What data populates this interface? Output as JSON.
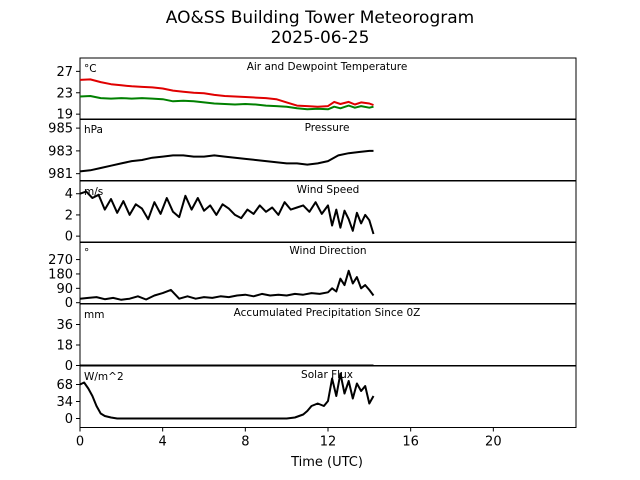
{
  "title": "AO&SS Building Tower Meteorogram",
  "subtitle": "2025-06-25",
  "xlabel": "Time (UTC)",
  "colors": {
    "temperature": "#e00000",
    "dewpoint": "#008000",
    "black": "#000000"
  },
  "chart_data": {
    "type": "line",
    "shared_x": {
      "label": "Time (UTC)",
      "xlim": [
        0,
        24
      ],
      "ticks": [
        0,
        4,
        8,
        12,
        16,
        20
      ]
    },
    "panels": [
      {
        "name": "Air and Dewpoint Temperature",
        "unit": "°C",
        "ylim": [
          18,
          29.5
        ],
        "yticks": [
          19,
          23,
          27
        ],
        "series": [
          {
            "key": "temperature",
            "x": [
              0,
              0.5,
              1,
              1.5,
              2,
              2.5,
              3,
              3.5,
              4,
              4.5,
              5,
              5.5,
              6,
              6.5,
              7,
              7.5,
              8,
              8.5,
              9,
              9.5,
              10,
              10.5,
              11,
              11.5,
              12,
              12.3,
              12.6,
              13,
              13.3,
              13.6,
              14,
              14.2
            ],
            "values": [
              25.4,
              25.5,
              25.0,
              24.6,
              24.4,
              24.2,
              24.1,
              24.0,
              23.8,
              23.4,
              23.2,
              23.0,
              22.9,
              22.6,
              22.4,
              22.3,
              22.2,
              22.1,
              22.0,
              21.8,
              21.2,
              20.6,
              20.5,
              20.4,
              20.5,
              21.3,
              20.9,
              21.3,
              20.8,
              21.2,
              21.0,
              20.7
            ]
          },
          {
            "key": "dewpoint",
            "x": [
              0,
              0.5,
              1,
              1.5,
              2,
              2.5,
              3,
              3.5,
              4,
              4.5,
              5,
              5.5,
              6,
              6.5,
              7,
              7.5,
              8,
              8.5,
              9,
              9.5,
              10,
              10.5,
              11,
              11.5,
              12,
              12.3,
              12.6,
              13,
              13.3,
              13.6,
              14,
              14.2
            ],
            "values": [
              22.3,
              22.4,
              22.0,
              21.9,
              22.0,
              21.9,
              22.0,
              21.9,
              21.8,
              21.4,
              21.5,
              21.4,
              21.2,
              21.0,
              20.9,
              20.8,
              20.9,
              20.8,
              20.6,
              20.5,
              20.4,
              20.1,
              19.9,
              20.0,
              19.9,
              20.4,
              20.1,
              20.6,
              20.2,
              20.5,
              20.2,
              20.4
            ]
          }
        ]
      },
      {
        "name": "Pressure",
        "unit": "hPa",
        "ylim": [
          980.4,
          985.8
        ],
        "yticks": [
          981,
          983,
          985
        ],
        "series": [
          {
            "key": "pressure",
            "x": [
              0,
              0.5,
              1,
              1.5,
              2,
              2.5,
              3,
              3.5,
              4,
              4.5,
              5,
              5.5,
              6,
              6.5,
              7,
              7.5,
              8,
              8.5,
              9,
              9.5,
              10,
              10.5,
              11,
              11.5,
              12,
              12.5,
              13,
              13.5,
              14,
              14.2
            ],
            "values": [
              981.2,
              981.3,
              981.5,
              981.7,
              981.9,
              982.1,
              982.2,
              982.4,
              982.5,
              982.6,
              982.6,
              982.5,
              982.5,
              982.6,
              982.5,
              982.4,
              982.3,
              982.2,
              982.1,
              982.0,
              981.9,
              981.9,
              981.8,
              981.9,
              982.1,
              982.6,
              982.8,
              982.9,
              983.0,
              983.0
            ]
          }
        ]
      },
      {
        "name": "Wind Speed",
        "unit": "m/s",
        "ylim": [
          -0.6,
          5.2
        ],
        "yticks": [
          0,
          2,
          4
        ],
        "series": [
          {
            "key": "wind_speed",
            "x": [
              0,
              0.3,
              0.6,
              0.9,
              1.2,
              1.5,
              1.8,
              2.1,
              2.4,
              2.7,
              3.0,
              3.3,
              3.6,
              3.9,
              4.2,
              4.5,
              4.8,
              5.1,
              5.4,
              5.7,
              6.0,
              6.3,
              6.6,
              6.9,
              7.2,
              7.5,
              7.8,
              8.1,
              8.4,
              8.7,
              9.0,
              9.3,
              9.6,
              9.9,
              10.2,
              10.5,
              10.8,
              11.1,
              11.4,
              11.7,
              12.0,
              12.2,
              12.4,
              12.6,
              12.8,
              13.0,
              13.2,
              13.4,
              13.6,
              13.8,
              14.0,
              14.2
            ],
            "values": [
              4.0,
              4.2,
              3.6,
              3.9,
              2.5,
              3.5,
              2.2,
              3.3,
              2.0,
              3.0,
              2.6,
              1.6,
              3.2,
              2.1,
              3.6,
              2.3,
              1.8,
              3.8,
              2.5,
              3.6,
              2.4,
              2.9,
              2.0,
              3.0,
              2.6,
              2.0,
              1.7,
              2.5,
              2.1,
              2.9,
              2.3,
              2.7,
              2.0,
              3.2,
              2.5,
              2.7,
              2.9,
              2.3,
              3.2,
              2.1,
              2.9,
              1.0,
              2.5,
              0.8,
              2.4,
              1.6,
              0.5,
              2.2,
              1.2,
              2.0,
              1.5,
              0.2
            ]
          }
        ]
      },
      {
        "name": "Wind Direction",
        "unit": "°",
        "ylim": [
          -5,
          380
        ],
        "yticks": [
          0,
          90,
          180,
          270
        ],
        "series": [
          {
            "key": "wind_direction",
            "x": [
              0,
              0.4,
              0.8,
              1.2,
              1.6,
              2.0,
              2.4,
              2.8,
              3.2,
              3.6,
              4.0,
              4.4,
              4.8,
              5.2,
              5.6,
              6.0,
              6.4,
              6.8,
              7.2,
              7.6,
              8.0,
              8.4,
              8.8,
              9.2,
              9.6,
              10.0,
              10.4,
              10.8,
              11.2,
              11.6,
              12.0,
              12.2,
              12.4,
              12.6,
              12.8,
              13.0,
              13.2,
              13.4,
              13.6,
              13.8,
              14.0,
              14.2
            ],
            "values": [
              25,
              30,
              35,
              22,
              30,
              18,
              25,
              40,
              20,
              45,
              60,
              80,
              25,
              40,
              25,
              35,
              30,
              40,
              35,
              45,
              50,
              40,
              55,
              45,
              50,
              45,
              55,
              50,
              60,
              55,
              65,
              90,
              70,
              150,
              110,
              200,
              120,
              160,
              90,
              110,
              80,
              45
            ]
          }
        ]
      },
      {
        "name": "Accumulated Precipitation Since 0Z",
        "unit": "mm",
        "ylim": [
          0,
          54
        ],
        "yticks": [
          0,
          18,
          36
        ],
        "series": [
          {
            "key": "precipitation",
            "x": [
              0,
              14.2
            ],
            "values": [
              0,
              0
            ]
          }
        ]
      },
      {
        "name": "Solar Flux",
        "unit": "W/m^2",
        "ylim": [
          -18,
          105
        ],
        "yticks": [
          0,
          34,
          68
        ],
        "series": [
          {
            "key": "solar_flux",
            "x": [
              0,
              0.2,
              0.4,
              0.6,
              0.8,
              1.0,
              1.2,
              1.5,
              1.8,
              2.5,
              4,
              6,
              8,
              10,
              10.4,
              10.8,
              11.0,
              11.2,
              11.5,
              11.8,
              12.0,
              12.2,
              12.4,
              12.6,
              12.8,
              13.0,
              13.2,
              13.4,
              13.6,
              13.8,
              14.0,
              14.2
            ],
            "values": [
              68,
              72,
              60,
              45,
              25,
              10,
              5,
              2,
              0,
              0,
              0,
              0,
              0,
              0,
              2,
              8,
              15,
              25,
              30,
              25,
              35,
              80,
              45,
              90,
              50,
              75,
              40,
              70,
              55,
              65,
              30,
              45
            ]
          }
        ]
      }
    ]
  }
}
